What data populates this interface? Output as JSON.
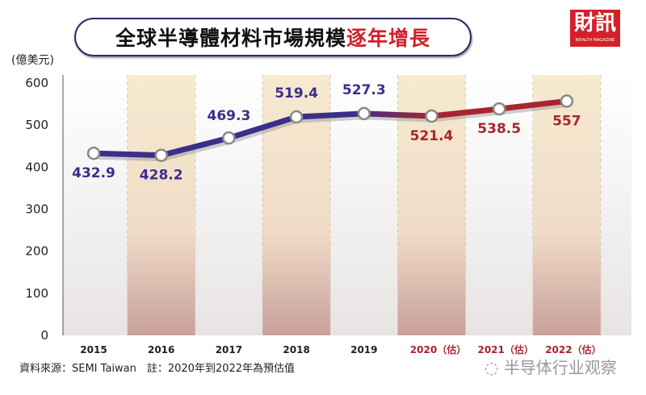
{
  "chart_data": {
    "type": "line",
    "title": "全球半導體材料市場規模",
    "title_highlight": "逐年增長",
    "ylabel": "(億美元)",
    "ylim": [
      0,
      600
    ],
    "yticks": [
      0,
      100,
      200,
      300,
      400,
      500,
      600
    ],
    "categories": [
      "2015",
      "2016",
      "2017",
      "2018",
      "2019",
      "2020（估）",
      "2021（估）",
      "2022（估）"
    ],
    "values": [
      432.9,
      428.2,
      469.3,
      519.4,
      527.3,
      521.4,
      538.5,
      557
    ],
    "labels": [
      "432.9",
      "428.2",
      "469.3",
      "519.4",
      "527.3",
      "521.4",
      "538.5",
      "557"
    ],
    "estimated": [
      false,
      false,
      false,
      false,
      false,
      true,
      true,
      true
    ],
    "colors": {
      "actual": "#3a2f8c",
      "estimate": "#a82530",
      "band": "#f5e8cc"
    },
    "source": "資料來源：SEMI Taiwan　註：2020年到2022年為預估值"
  },
  "logo": {
    "main": "財訊",
    "sub": "WEALTH MAGAZINE"
  },
  "watermark": "半导体行业观察"
}
